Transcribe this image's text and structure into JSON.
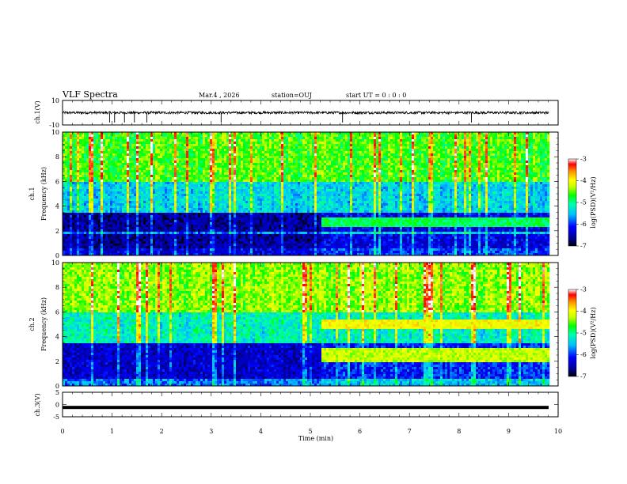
{
  "header": {
    "title": "VLF Spectra",
    "date": "Mar.4 , 2026",
    "station": "station=OUJ",
    "start_time": "start UT = 0 : 0 : 0"
  },
  "colors": {
    "background": "#ffffff",
    "trace": "#000000",
    "colormap": [
      "#000000",
      "#00008b",
      "#0000ff",
      "#00bfff",
      "#00ffb0",
      "#00ff00",
      "#c8ff00",
      "#ffff00",
      "#ff8c00",
      "#ff0000",
      "#ffffff"
    ]
  },
  "chart_data": [
    {
      "type": "line",
      "panel": "ch1-waveform",
      "ylabel": "ch.1(V)",
      "ylim": [
        -10,
        10
      ],
      "yticks": [
        "10",
        "-10"
      ],
      "xlim": [
        0,
        10
      ],
      "baseline_v": 0,
      "description_values": {
        "noise_amplitude_v": 1,
        "spike_minutes": [
          0.95,
          1.05,
          1.25,
          1.45,
          1.7,
          3.2,
          5.65,
          8.25
        ]
      }
    },
    {
      "type": "heatmap",
      "panel": "ch1-spectrogram",
      "ylabel": "ch.1 Frequency (kHz)",
      "ylim": [
        0,
        10
      ],
      "yticks": [
        "0",
        "2",
        "4",
        "6",
        "8",
        "10"
      ],
      "xlim": [
        0,
        10
      ],
      "colorbar": {
        "label": "log(PSD)(V²/Hz)",
        "range": [
          -7,
          -3
        ],
        "ticks": [
          "-3",
          "-4",
          "-5",
          "-6",
          "-7"
        ]
      },
      "regime_change_min": 5.2,
      "bands_khz": [
        {
          "from": 0,
          "to": 0.5,
          "level": -6.3
        },
        {
          "from": 0.5,
          "to": 3.5,
          "level": -6.6
        },
        {
          "from": 3.5,
          "to": 6,
          "level": -5.4
        },
        {
          "from": 6,
          "to": 10,
          "level": -4.6
        }
      ],
      "after_change_band_khz": {
        "from": 2.3,
        "to": 3.0,
        "level": -5.2
      }
    },
    {
      "type": "heatmap",
      "panel": "ch2-spectrogram",
      "ylabel": "ch.2 Frequency (kHz)",
      "ylim": [
        0,
        10
      ],
      "yticks": [
        "0",
        "2",
        "4",
        "6",
        "8",
        "10"
      ],
      "xlim": [
        0,
        10
      ],
      "colorbar": {
        "label": "log(PSD)(V²/Hz)",
        "range": [
          -7,
          -3
        ],
        "ticks": [
          "-3",
          "-4",
          "-5",
          "-6",
          "-7"
        ]
      },
      "regime_change_min": 5.2,
      "bands_khz": [
        {
          "from": 0,
          "to": 0.5,
          "level": -5.8
        },
        {
          "from": 0.5,
          "to": 3.5,
          "level": -6.4
        },
        {
          "from": 3.5,
          "to": 6,
          "level": -5.2
        },
        {
          "from": 6,
          "to": 10,
          "level": -4.4
        }
      ],
      "after_change_band_khz": {
        "from": 2.0,
        "to": 3.0,
        "level": -4.6
      },
      "after_change_band2_khz": {
        "from": 4.6,
        "to": 5.4,
        "level": -4.0
      }
    },
    {
      "type": "line",
      "panel": "ch3-waveform",
      "ylabel": "ch.3(V)",
      "ylim": [
        -5,
        5
      ],
      "yticks": [
        "5",
        "0",
        "-5"
      ],
      "xlim": [
        0,
        10
      ],
      "level_v": -1.2
    }
  ],
  "xaxis": {
    "label": "Time (min)",
    "ticks": [
      "0",
      "1",
      "2",
      "3",
      "4",
      "5",
      "6",
      "7",
      "8",
      "9",
      "10"
    ]
  }
}
